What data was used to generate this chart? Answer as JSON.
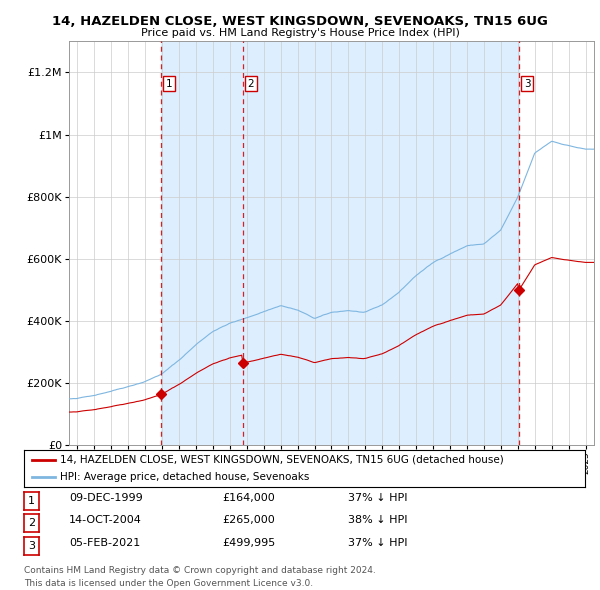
{
  "title": "14, HAZELDEN CLOSE, WEST KINGSDOWN, SEVENOAKS, TN15 6UG",
  "subtitle": "Price paid vs. HM Land Registry's House Price Index (HPI)",
  "purchases": [
    {
      "index": 1,
      "date": "09-DEC-1999",
      "year": 1999.94,
      "price": 164000,
      "pct": "37%",
      "dir": "↓"
    },
    {
      "index": 2,
      "date": "14-OCT-2004",
      "year": 2004.79,
      "price": 265000,
      "pct": "38%",
      "dir": "↓"
    },
    {
      "index": 3,
      "date": "05-FEB-2021",
      "year": 2021.1,
      "price": 499995,
      "pct": "37%",
      "dir": "↓"
    }
  ],
  "legend_red": "14, HAZELDEN CLOSE, WEST KINGSDOWN, SEVENOAKS, TN15 6UG (detached house)",
  "legend_blue": "HPI: Average price, detached house, Sevenoaks",
  "footer1": "Contains HM Land Registry data © Crown copyright and database right 2024.",
  "footer2": "This data is licensed under the Open Government Licence v3.0.",
  "hpi_color": "#7eb6e0",
  "price_color": "#cc0000",
  "shade_color": "#ddeeff",
  "bg_color": "#ffffff",
  "grid_color": "#cccccc",
  "hpi_key_years": [
    1995,
    1996,
    1997,
    1998,
    1999,
    2000,
    2001,
    2002,
    2003,
    2004,
    2005,
    2006,
    2007,
    2008,
    2009,
    2010,
    2011,
    2012,
    2013,
    2014,
    2015,
    2016,
    2017,
    2018,
    2019,
    2020,
    2021,
    2022,
    2023,
    2024,
    2025
  ],
  "hpi_key_vals": [
    150000,
    162000,
    177000,
    193000,
    210000,
    235000,
    278000,
    328000,
    372000,
    398000,
    414000,
    435000,
    455000,
    440000,
    412000,
    430000,
    437000,
    430000,
    452000,
    494000,
    548000,
    588000,
    618000,
    644000,
    650000,
    694000,
    798000,
    938000,
    977000,
    964000,
    952000
  ],
  "ylim": [
    0,
    1300000
  ],
  "ylim_top_display": 1200000,
  "xlim_start": 1994.5,
  "xlim_end": 2025.5,
  "noise_seed": 42,
  "noise_scale": 400
}
